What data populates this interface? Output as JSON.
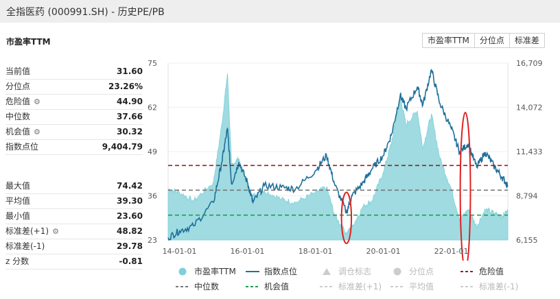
{
  "title": "全指医药 (000991.SH) - 历史PE/PB",
  "section_title": "市盈率TTM",
  "tabs": [
    "市盈率TTM",
    "分位点",
    "标准差"
  ],
  "stats_top": [
    {
      "label": "当前值",
      "value": "31.60",
      "gear": false
    },
    {
      "label": "分位点",
      "value": "23.26%",
      "gear": false
    },
    {
      "label": "危险值",
      "value": "44.90",
      "gear": true
    },
    {
      "label": "中位数",
      "value": "37.66",
      "gear": false
    },
    {
      "label": "机会值",
      "value": "30.32",
      "gear": true
    },
    {
      "label": "指数点位",
      "value": "9,404.79",
      "gear": false
    }
  ],
  "stats_bottom": [
    {
      "label": "最大值",
      "value": "74.42",
      "gear": false
    },
    {
      "label": "平均值",
      "value": "39.30",
      "gear": false
    },
    {
      "label": "最小值",
      "value": "23.60",
      "gear": false
    },
    {
      "label": "标准差(+1)",
      "value": "48.82",
      "gear": true
    },
    {
      "label": "标准差(-1)",
      "value": "29.78",
      "gear": false
    },
    {
      "label": "z 分数",
      "value": "-0.81",
      "gear": false
    }
  ],
  "legend": [
    {
      "label": "市盈率TTM",
      "kind": "dot",
      "color": "#7fd0d8",
      "active": true
    },
    {
      "label": "指数点位",
      "kind": "line",
      "color": "#1f6f99",
      "active": true
    },
    {
      "label": "调仓标志",
      "kind": "tri",
      "color": "#cccccc",
      "active": false
    },
    {
      "label": "分位点",
      "kind": "dot",
      "color": "#cccccc",
      "active": false
    },
    {
      "label": "危险值",
      "kind": "dash",
      "color": "#9b1b1b",
      "active": true
    },
    {
      "label": "中位数",
      "kind": "dash",
      "color": "#777777",
      "active": true
    },
    {
      "label": "机会值",
      "kind": "dash",
      "color": "#1e9e4c",
      "active": true
    },
    {
      "label": "标准差(+1)",
      "kind": "dash",
      "color": "#cccccc",
      "active": false
    },
    {
      "label": "平均值",
      "kind": "dash",
      "color": "#cccccc",
      "active": false
    },
    {
      "label": "标准差(-1)",
      "kind": "dash",
      "color": "#cccccc",
      "active": false
    }
  ],
  "chart_data": {
    "type": "area",
    "x_ticks": [
      "14-01-01",
      "16-01-01",
      "18-01-01",
      "20-01-01",
      "22-01-01"
    ],
    "y_left_ticks": [
      23,
      36,
      49,
      62,
      75
    ],
    "y_right_ticks": [
      "6,155",
      "8,794",
      "11,433",
      "14,072",
      "16,709"
    ],
    "ylim_left": [
      23,
      75
    ],
    "ylim_right": [
      6155,
      16709
    ],
    "x_range": [
      "2013-09-01",
      "2023-09-01"
    ],
    "pe_ttm": [
      [
        "2013-09-01",
        38
      ],
      [
        "2014-01-01",
        37
      ],
      [
        "2014-06-01",
        34.5
      ],
      [
        "2015-01-01",
        40
      ],
      [
        "2015-04-01",
        57
      ],
      [
        "2015-06-01",
        72
      ],
      [
        "2015-07-15",
        45
      ],
      [
        "2015-10-01",
        47
      ],
      [
        "2016-01-01",
        39
      ],
      [
        "2016-03-01",
        36
      ],
      [
        "2016-07-01",
        37.5
      ],
      [
        "2017-01-01",
        35
      ],
      [
        "2017-06-01",
        34
      ],
      [
        "2018-01-01",
        37
      ],
      [
        "2018-05-01",
        38.5
      ],
      [
        "2018-08-01",
        30
      ],
      [
        "2018-12-01",
        25
      ],
      [
        "2019-02-01",
        27
      ],
      [
        "2019-06-01",
        33
      ],
      [
        "2019-09-01",
        34.5
      ],
      [
        "2020-01-01",
        43
      ],
      [
        "2020-04-01",
        52
      ],
      [
        "2020-07-01",
        65
      ],
      [
        "2020-09-01",
        57
      ],
      [
        "2021-01-01",
        61
      ],
      [
        "2021-03-01",
        50
      ],
      [
        "2021-06-01",
        60
      ],
      [
        "2021-09-01",
        47
      ],
      [
        "2022-01-01",
        38
      ],
      [
        "2022-04-01",
        29
      ],
      [
        "2022-07-01",
        32
      ],
      [
        "2022-10-01",
        27
      ],
      [
        "2023-01-01",
        32
      ],
      [
        "2023-04-01",
        31
      ],
      [
        "2023-07-01",
        30
      ],
      [
        "2023-09-01",
        31.6
      ]
    ],
    "index_points": [
      [
        "2013-09-01",
        6300
      ],
      [
        "2014-01-01",
        6700
      ],
      [
        "2014-06-01",
        7000
      ],
      [
        "2015-01-01",
        8400
      ],
      [
        "2015-04-01",
        10800
      ],
      [
        "2015-06-01",
        12800
      ],
      [
        "2015-07-15",
        9500
      ],
      [
        "2015-10-01",
        10800
      ],
      [
        "2016-01-01",
        9600
      ],
      [
        "2016-03-01",
        8400
      ],
      [
        "2016-07-01",
        9400
      ],
      [
        "2017-01-01",
        9300
      ],
      [
        "2017-06-01",
        9200
      ],
      [
        "2018-01-01",
        10300
      ],
      [
        "2018-05-01",
        11200
      ],
      [
        "2018-08-01",
        9400
      ],
      [
        "2018-12-01",
        7800
      ],
      [
        "2019-02-01",
        8800
      ],
      [
        "2019-06-01",
        9600
      ],
      [
        "2019-09-01",
        10400
      ],
      [
        "2020-01-01",
        11200
      ],
      [
        "2020-04-01",
        12500
      ],
      [
        "2020-07-01",
        14800
      ],
      [
        "2020-09-01",
        14000
      ],
      [
        "2021-01-01",
        15300
      ],
      [
        "2021-03-01",
        14200
      ],
      [
        "2021-06-01",
        16300
      ],
      [
        "2021-09-01",
        14300
      ],
      [
        "2022-01-01",
        12800
      ],
      [
        "2022-04-01",
        11400
      ],
      [
        "2022-07-01",
        11900
      ],
      [
        "2022-10-01",
        10500
      ],
      [
        "2023-01-01",
        11400
      ],
      [
        "2023-04-01",
        10600
      ],
      [
        "2023-07-01",
        9900
      ],
      [
        "2023-09-01",
        9404.79
      ]
    ],
    "reference_lines": {
      "danger": 44.9,
      "median": 37.66,
      "opportunity": 30.32
    },
    "annotations": [
      {
        "shape": "ellipse",
        "color": "#e02020",
        "center": [
          "2018-12-01",
          29.5
        ],
        "span_months": 3.5,
        "span_value": 15
      },
      {
        "shape": "ellipse",
        "color": "#e02020",
        "center": [
          "2022-06-01",
          37.5
        ],
        "span_months": 3.6,
        "span_value": 46
      }
    ]
  }
}
